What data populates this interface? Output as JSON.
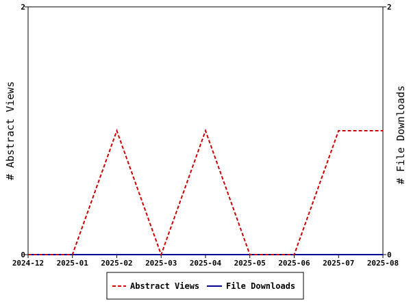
{
  "chart_data": {
    "type": "line",
    "x": [
      "2024-12",
      "2025-01",
      "2025-02",
      "2025-03",
      "2025-04",
      "2025-05",
      "2025-06",
      "2025-07",
      "2025-08"
    ],
    "series": [
      {
        "name": "Abstract Views",
        "axis": "left",
        "color": "#cc0000",
        "style": "dashed",
        "values": [
          0,
          0,
          1,
          0,
          1,
          0,
          0,
          1,
          1
        ]
      },
      {
        "name": "File Downloads",
        "axis": "right",
        "color": "#000099",
        "style": "solid",
        "values": [
          0,
          0,
          0,
          0,
          0,
          0,
          0,
          0,
          0
        ]
      }
    ],
    "xlabel": "",
    "ylabel": "# Abstract Views",
    "y2label": "# File Downloads",
    "ylim": [
      0,
      2
    ],
    "y2lim": [
      0,
      2
    ],
    "yticks": [
      "0",
      "2"
    ],
    "y2ticks": [
      "0",
      "2"
    ],
    "legend": "bottom-center",
    "grid": false
  }
}
